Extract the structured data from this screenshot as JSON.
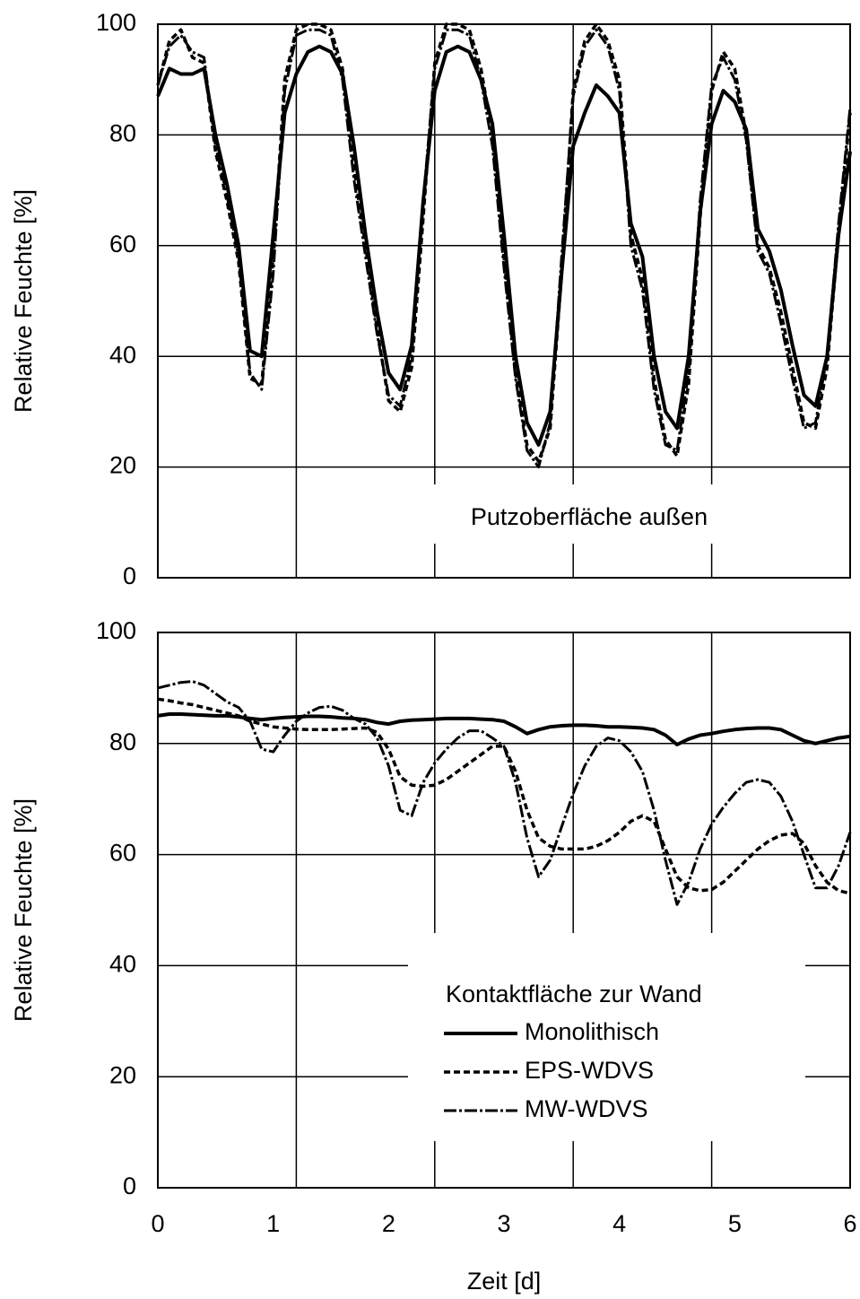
{
  "chart_data": [
    {
      "type": "line",
      "ylabel": "Relative Feuchte [%]",
      "annotation": "Putzoberfläche außen",
      "xlim": [
        0,
        6
      ],
      "x_grid": [
        1.2,
        2.4,
        3.6,
        4.8
      ],
      "ylim": [
        0,
        100
      ],
      "yticks": [
        0,
        20,
        40,
        60,
        80,
        100
      ],
      "grid": true,
      "x": [
        0,
        0.1,
        0.2,
        0.3,
        0.4,
        0.5,
        0.6,
        0.7,
        0.8,
        0.9,
        1,
        1.1,
        1.2,
        1.3,
        1.4,
        1.5,
        1.6,
        1.7,
        1.8,
        1.9,
        2,
        2.1,
        2.2,
        2.3,
        2.4,
        2.5,
        2.6,
        2.7,
        2.8,
        2.9,
        3,
        3.1,
        3.2,
        3.3,
        3.4,
        3.5,
        3.6,
        3.7,
        3.8,
        3.9,
        4,
        4.1,
        4.2,
        4.3,
        4.4,
        4.5,
        4.6,
        4.7,
        4.8,
        4.9,
        5,
        5.1,
        5.2,
        5.3,
        5.4,
        5.5,
        5.6,
        5.7,
        5.8,
        5.9,
        6
      ],
      "series": [
        {
          "name": "Monolithisch",
          "color": "#000000",
          "line_style": "solid",
          "values": [
            87,
            92,
            91,
            91,
            92,
            80,
            71,
            60,
            41,
            40,
            62,
            84,
            91,
            95,
            96,
            95,
            91,
            78,
            62,
            48,
            37,
            34,
            42,
            68,
            88,
            95,
            96,
            95,
            90,
            82,
            62,
            40,
            28,
            24,
            30,
            55,
            78,
            84,
            89,
            87,
            84,
            64,
            58,
            40,
            30,
            27,
            40,
            66,
            82,
            88,
            86,
            81,
            63,
            59,
            52,
            42,
            33,
            31,
            40,
            62,
            77
          ]
        },
        {
          "name": "EPS-WDVS",
          "color": "#000000",
          "line_style": "dashed",
          "values": [
            89,
            97,
            99,
            94,
            93,
            77,
            68,
            57,
            36,
            35,
            58,
            90,
            99,
            100,
            100,
            99,
            92,
            74,
            60,
            45,
            32,
            30,
            38,
            65,
            93,
            100,
            100,
            99,
            92,
            80,
            58,
            37,
            24,
            21,
            27,
            55,
            88,
            97,
            100,
            97,
            90,
            62,
            54,
            36,
            25,
            22,
            35,
            65,
            88,
            95,
            92,
            80,
            60,
            56,
            48,
            38,
            28,
            27,
            38,
            62,
            84
          ]
        },
        {
          "name": "MW-WDVS",
          "color": "#000000",
          "line_style": "longdash",
          "values": [
            89,
            96,
            98,
            95,
            94,
            78,
            69,
            58,
            37,
            34,
            55,
            88,
            98,
            99,
            99,
            98,
            90,
            72,
            58,
            44,
            33,
            31,
            40,
            68,
            92,
            99,
            99,
            98,
            90,
            78,
            56,
            36,
            23,
            20,
            28,
            58,
            87,
            96,
            99,
            96,
            88,
            60,
            52,
            34,
            24,
            23,
            37,
            68,
            89,
            94,
            90,
            79,
            59,
            55,
            46,
            36,
            27,
            28,
            40,
            64,
            85
          ]
        }
      ]
    },
    {
      "type": "line",
      "xlabel": "Zeit [d]",
      "ylabel": "Relative Feuchte [%]",
      "legend_title": "Kontaktfläche zur Wand",
      "legend": "lower right",
      "xlim": [
        0,
        6
      ],
      "xticks": [
        0,
        1,
        2,
        3,
        4,
        5,
        6
      ],
      "x_grid": [
        1.2,
        2.4,
        3.6,
        4.8
      ],
      "ylim": [
        0,
        100
      ],
      "yticks": [
        0,
        20,
        40,
        60,
        80,
        100
      ],
      "grid": true,
      "x": [
        0,
        0.1,
        0.2,
        0.3,
        0.4,
        0.5,
        0.6,
        0.7,
        0.8,
        0.9,
        1,
        1.1,
        1.2,
        1.3,
        1.4,
        1.5,
        1.6,
        1.7,
        1.8,
        1.9,
        2,
        2.1,
        2.2,
        2.3,
        2.4,
        2.5,
        2.6,
        2.7,
        2.8,
        2.9,
        3,
        3.1,
        3.2,
        3.3,
        3.4,
        3.5,
        3.6,
        3.7,
        3.8,
        3.9,
        4,
        4.1,
        4.2,
        4.3,
        4.4,
        4.5,
        4.6,
        4.7,
        4.8,
        4.9,
        5,
        5.1,
        5.2,
        5.3,
        5.4,
        5.5,
        5.6,
        5.7,
        5.8,
        5.9,
        6
      ],
      "series": [
        {
          "name": "Monolithisch",
          "color": "#000000",
          "line_style": "solid",
          "values": [
            85,
            85.3,
            85.3,
            85.2,
            85.1,
            85,
            85,
            84.8,
            84.5,
            84.3,
            84.5,
            84.7,
            84.8,
            84.9,
            84.9,
            84.8,
            84.6,
            84.5,
            84.3,
            83.8,
            83.5,
            84,
            84.2,
            84.3,
            84.4,
            84.5,
            84.5,
            84.5,
            84.4,
            84.3,
            84,
            83,
            81.8,
            82.5,
            83,
            83.2,
            83.3,
            83.3,
            83.2,
            83,
            83,
            82.9,
            82.8,
            82.5,
            81.5,
            79.8,
            80.8,
            81.5,
            81.8,
            82.2,
            82.5,
            82.7,
            82.8,
            82.8,
            82.5,
            81.5,
            80.5,
            80,
            80.5,
            81,
            81.3
          ]
        },
        {
          "name": "EPS-WDVS",
          "color": "#000000",
          "line_style": "dashed",
          "values": [
            88,
            87.7,
            87.3,
            87,
            86.5,
            86,
            85.5,
            85,
            84,
            83.5,
            83,
            82.8,
            82.6,
            82.5,
            82.5,
            82.5,
            82.6,
            82.7,
            82.8,
            82,
            79,
            74,
            72.5,
            72.3,
            72.5,
            73.5,
            75,
            76.5,
            78,
            79.5,
            79.5,
            75,
            68,
            63,
            61.5,
            61,
            61,
            61,
            61.5,
            62.5,
            64,
            66,
            67,
            66,
            61,
            56,
            54,
            53.5,
            53.7,
            55,
            57,
            59,
            61,
            62.5,
            63.5,
            63.8,
            62,
            58,
            55,
            53.5,
            53
          ]
        },
        {
          "name": "MW-WDVS",
          "color": "#000000",
          "line_style": "longdash",
          "values": [
            90,
            90.5,
            91,
            91.2,
            90.5,
            89,
            87.5,
            86.5,
            84,
            79,
            78.5,
            81.5,
            84,
            85.5,
            86.5,
            86.7,
            86,
            84.5,
            83.5,
            81,
            76,
            68,
            67,
            73,
            76.5,
            79,
            81,
            82.3,
            82.3,
            81,
            79.5,
            73,
            63,
            56,
            59,
            65,
            71,
            76,
            79.5,
            81,
            80.5,
            78.5,
            75,
            68,
            59,
            51,
            55,
            61,
            65.5,
            68.5,
            71,
            73,
            73.5,
            73,
            70.5,
            66,
            60,
            54,
            54,
            58,
            64
          ]
        }
      ]
    }
  ]
}
